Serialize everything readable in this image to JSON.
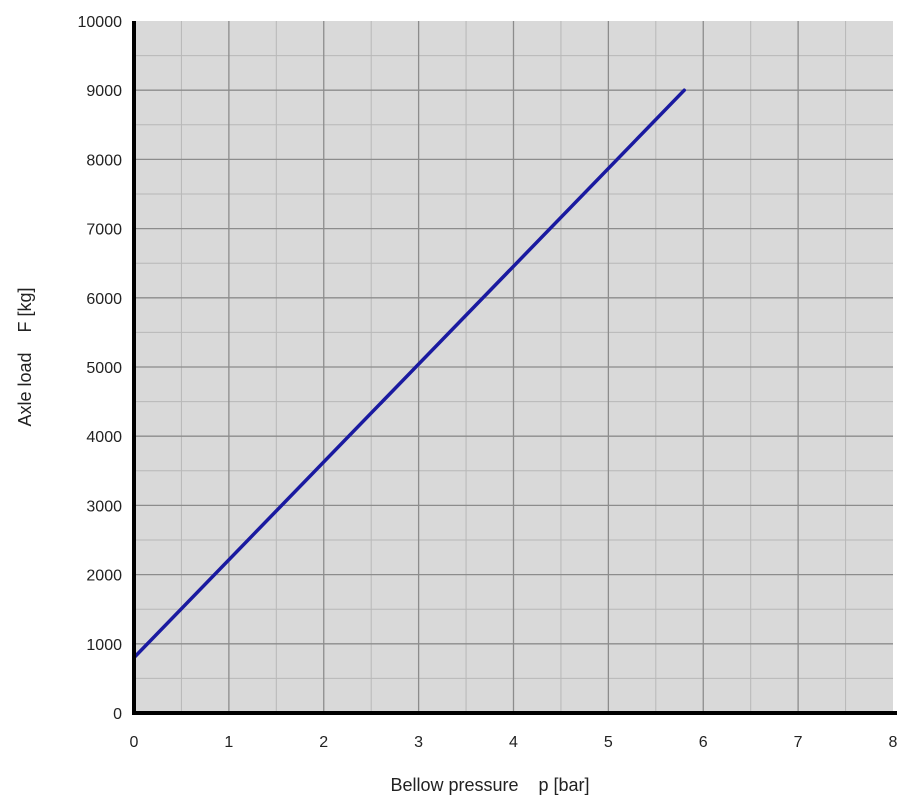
{
  "chart_data": {
    "type": "line",
    "title": "",
    "xlabel": "Bellow pressure    p [bar]",
    "ylabel": "Axle load    F [kg]",
    "xlim": [
      0,
      8
    ],
    "ylim": [
      0,
      10000
    ],
    "x_ticks": [
      "0",
      "1",
      "2",
      "3",
      "4",
      "5",
      "6",
      "7",
      "8"
    ],
    "y_ticks": [
      "0",
      "1000",
      "2000",
      "3000",
      "4000",
      "5000",
      "6000",
      "7000",
      "8000",
      "9000",
      "10000"
    ],
    "x_minor_step": 0.5,
    "y_minor_step": 500,
    "grid": true,
    "series": [
      {
        "color": "#1a1aa0",
        "x": [
          0,
          5.8
        ],
        "y": [
          800,
          9000
        ]
      }
    ],
    "colors": {
      "plot_background": "#d9d9d9",
      "major_grid": "#8c8c8c",
      "minor_grid": "#b8b8b8",
      "axis": "#000000"
    }
  }
}
